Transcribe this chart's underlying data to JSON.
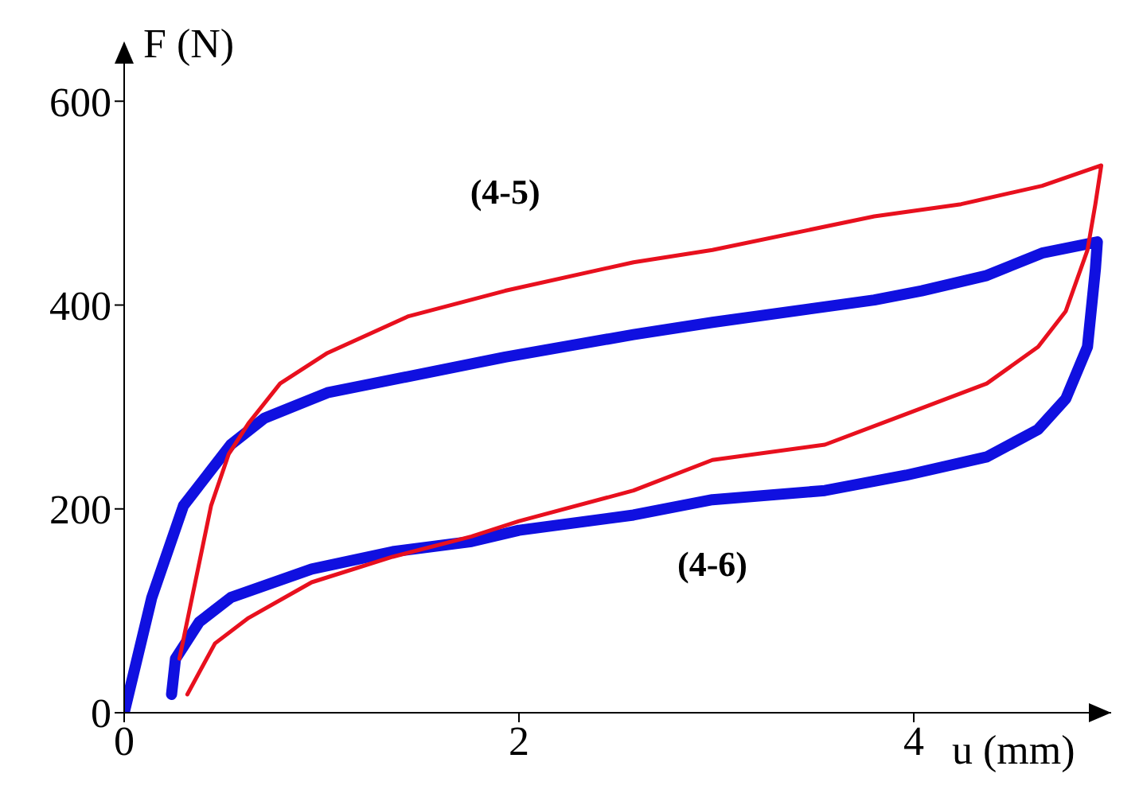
{
  "chart_data": {
    "type": "line",
    "xlabel": "u (mm)",
    "ylabel": "F (N)",
    "xlim": [
      0,
      5
    ],
    "ylim": [
      0,
      640
    ],
    "xticks": [
      0,
      2,
      4
    ],
    "yticks": [
      0,
      200,
      400,
      600
    ],
    "marker": "none",
    "line_style": "solid",
    "series": [
      {
        "name": "(4-5)",
        "color": "#e8101e",
        "x": [
          0.28,
          0.36,
          0.44,
          0.53,
          0.63,
          0.79,
          1.03,
          1.44,
          1.93,
          2.58,
          2.98,
          3.8,
          4.24,
          4.65,
          4.95,
          4.92,
          4.88,
          4.77,
          4.63,
          4.37,
          3.96,
          3.55,
          2.98,
          2.58,
          2.0,
          1.76,
          1.36,
          0.95,
          0.63,
          0.46,
          0.32
        ],
        "values": [
          53,
          128,
          203,
          254,
          284,
          323,
          353,
          389,
          414,
          442,
          454,
          487,
          499,
          517,
          537,
          499,
          454,
          394,
          359,
          323,
          293,
          263,
          248,
          218,
          188,
          173,
          153,
          128,
          93,
          68,
          18
        ]
      },
      {
        "name": "(4-6)",
        "color": "#1010e0",
        "x": [
          0,
          0.14,
          0.3,
          0.54,
          0.71,
          1.03,
          1.93,
          2.58,
          2.98,
          3.8,
          4.04,
          4.37,
          4.65,
          4.93,
          4.92,
          4.88,
          4.77,
          4.63,
          4.37,
          3.96,
          3.55,
          2.98,
          2.58,
          2.0,
          1.76,
          1.36,
          0.95,
          0.54,
          0.38,
          0.26,
          0.24
        ],
        "values": [
          0,
          113,
          203,
          263,
          289,
          314,
          349,
          371,
          383,
          405,
          414,
          429,
          451,
          462,
          435,
          359,
          308,
          278,
          251,
          233,
          218,
          209,
          194,
          179,
          168,
          158,
          141,
          113,
          89,
          53,
          18
        ]
      }
    ]
  }
}
